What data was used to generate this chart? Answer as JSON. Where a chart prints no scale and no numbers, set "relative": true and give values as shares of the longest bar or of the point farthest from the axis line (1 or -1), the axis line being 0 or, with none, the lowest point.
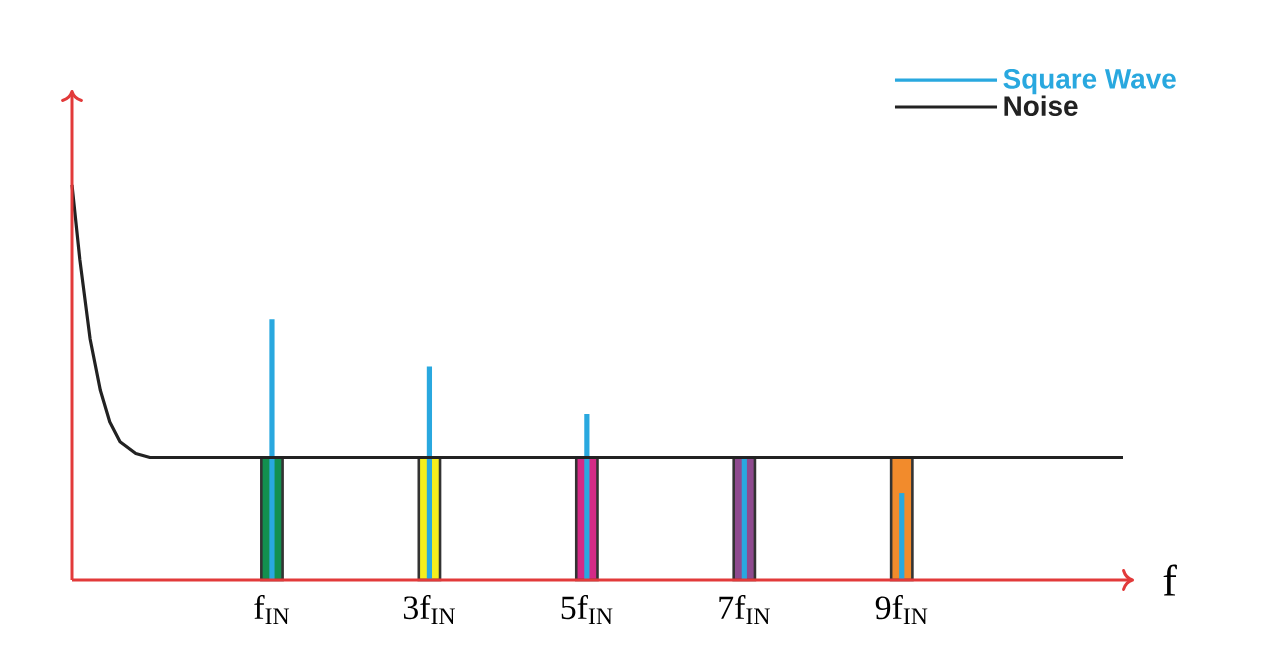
{
  "chart_data": {
    "type": "bar",
    "relative": true,
    "xlabel": "f",
    "xlim": [
      -1.54,
      11.95
    ],
    "xticks": [
      {
        "value": 1,
        "label": "f$_{IN}$"
      },
      {
        "value": 3,
        "label": "3f$_{IN}$"
      },
      {
        "value": 5,
        "label": "5f$_{IN}$"
      },
      {
        "value": 7,
        "label": "7f$_{IN}$"
      },
      {
        "value": 9,
        "label": "9f$_{IN}$"
      }
    ],
    "legend": "top right",
    "series": [
      {
        "x": [
          1,
          3,
          5,
          7,
          9
        ],
        "values": [
          0.31,
          0.31,
          0.31,
          0.31,
          0.31
        ],
        "colors": [
          "#13904f",
          "#f5ee1d",
          "#d42a86",
          "#8e4a8e",
          "#f28b2c"
        ]
      },
      {
        "name": "Square Wave",
        "color": "#29a8df",
        "x": [
          1,
          3,
          5,
          7,
          9
        ],
        "values": [
          0.66,
          0.54,
          0.42,
          0.31,
          0.22
        ]
      },
      {
        "name": "Noise",
        "type": "line",
        "color": "#222222",
        "x": [
          -1.54,
          -1.44,
          -1.31,
          -1.18,
          -1.06,
          -0.93,
          -0.73,
          -0.55,
          11.81
        ],
        "values": [
          1.0,
          0.81,
          0.61,
          0.48,
          0.4,
          0.35,
          0.32,
          0.31,
          0.31
        ]
      }
    ]
  }
}
